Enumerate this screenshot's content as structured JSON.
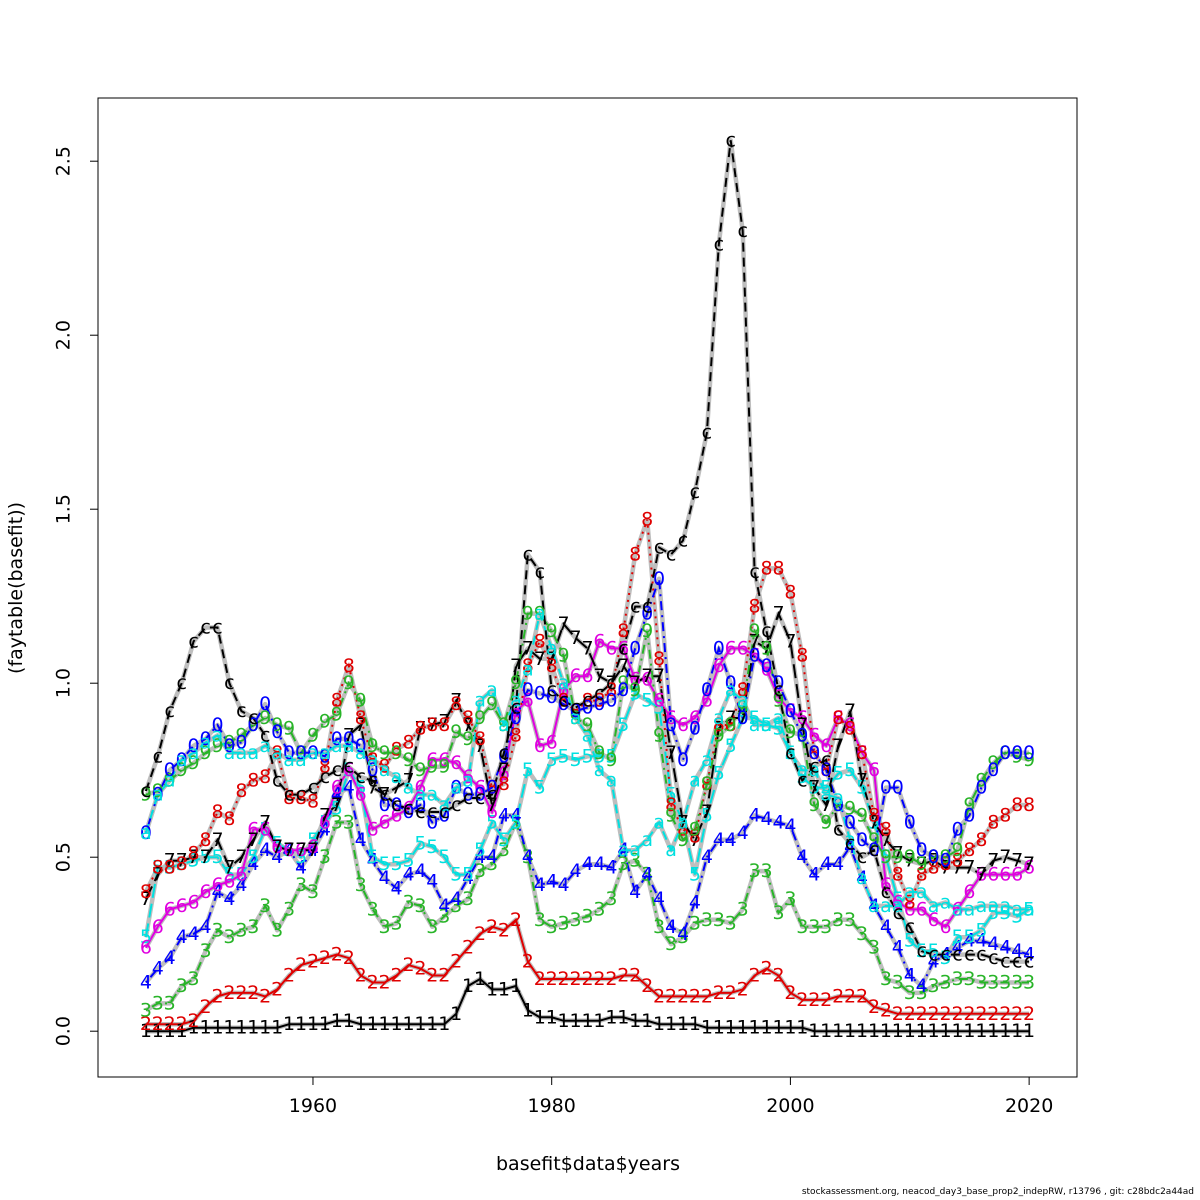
{
  "chart_data": {
    "type": "line",
    "xlabel": "basefit$data$years",
    "ylabel": "(faytable(basefit))",
    "xlim": [
      1944,
      2022
    ],
    "ylim": [
      -0.1,
      2.65
    ],
    "x_ticks": [
      1960,
      1980,
      2000,
      2020
    ],
    "y_ticks": [
      0.0,
      0.5,
      1.0,
      1.5,
      2.0,
      2.5
    ],
    "y_tick_labels": [
      "0.0",
      "0.5",
      "1.0",
      "1.5",
      "2.0",
      "2.5"
    ],
    "grid": false,
    "legend": "none",
    "x": [
      1946,
      1947,
      1948,
      1949,
      1950,
      1951,
      1952,
      1953,
      1954,
      1955,
      1956,
      1957,
      1958,
      1959,
      1960,
      1961,
      1962,
      1963,
      1964,
      1965,
      1966,
      1967,
      1968,
      1969,
      1970,
      1971,
      1972,
      1973,
      1974,
      1975,
      1976,
      1977,
      1978,
      1979,
      1980,
      1981,
      1982,
      1983,
      1984,
      1985,
      1986,
      1987,
      1988,
      1989,
      1990,
      1991,
      1992,
      1993,
      1994,
      1995,
      1996,
      1997,
      1998,
      1999,
      2000,
      2001,
      2002,
      2003,
      2004,
      2005,
      2006,
      2007,
      2008,
      2009,
      2010,
      2011,
      2012,
      2013,
      2014,
      2015,
      2016,
      2017,
      2018,
      2019,
      2020
    ],
    "series": [
      {
        "label": "1",
        "color": "#000000",
        "dash": "solid",
        "values": [
          0.0,
          0.0,
          0.0,
          0.0,
          0.01,
          0.01,
          0.01,
          0.01,
          0.01,
          0.01,
          0.01,
          0.01,
          0.02,
          0.02,
          0.02,
          0.02,
          0.03,
          0.03,
          0.02,
          0.02,
          0.02,
          0.02,
          0.02,
          0.02,
          0.02,
          0.02,
          0.05,
          0.13,
          0.15,
          0.12,
          0.12,
          0.13,
          0.06,
          0.04,
          0.04,
          0.03,
          0.03,
          0.03,
          0.03,
          0.04,
          0.04,
          0.03,
          0.03,
          0.02,
          0.02,
          0.02,
          0.02,
          0.01,
          0.01,
          0.01,
          0.01,
          0.01,
          0.01,
          0.01,
          0.01,
          0.01,
          0.0,
          0.0,
          0.0,
          0.0,
          0.0,
          0.0,
          0.0,
          0.0,
          0.0,
          0.0,
          0.0,
          0.0,
          0.0,
          0.0,
          0.0,
          0.0,
          0.0,
          0.0,
          0.0
        ]
      },
      {
        "label": "2",
        "color": "#df0000",
        "dash": "solid",
        "values": [
          0.02,
          0.02,
          0.02,
          0.02,
          0.03,
          0.07,
          0.1,
          0.11,
          0.11,
          0.11,
          0.1,
          0.12,
          0.16,
          0.19,
          0.2,
          0.21,
          0.22,
          0.21,
          0.16,
          0.14,
          0.14,
          0.16,
          0.19,
          0.18,
          0.16,
          0.16,
          0.2,
          0.24,
          0.28,
          0.3,
          0.29,
          0.32,
          0.2,
          0.15,
          0.15,
          0.15,
          0.15,
          0.15,
          0.15,
          0.15,
          0.16,
          0.16,
          0.13,
          0.1,
          0.1,
          0.1,
          0.1,
          0.1,
          0.11,
          0.11,
          0.12,
          0.16,
          0.18,
          0.16,
          0.11,
          0.09,
          0.09,
          0.09,
          0.1,
          0.1,
          0.1,
          0.07,
          0.06,
          0.05,
          0.05,
          0.05,
          0.05,
          0.05,
          0.05,
          0.05,
          0.05,
          0.05,
          0.05,
          0.05,
          0.05
        ]
      },
      {
        "label": "3",
        "color": "#28b428",
        "dash": "dotdash",
        "values": [
          0.06,
          0.08,
          0.08,
          0.13,
          0.15,
          0.23,
          0.29,
          0.27,
          0.29,
          0.3,
          0.36,
          0.29,
          0.35,
          0.42,
          0.4,
          0.5,
          0.6,
          0.6,
          0.42,
          0.35,
          0.3,
          0.31,
          0.37,
          0.36,
          0.3,
          0.33,
          0.36,
          0.38,
          0.46,
          0.48,
          0.52,
          0.6,
          0.5,
          0.32,
          0.3,
          0.31,
          0.32,
          0.33,
          0.35,
          0.38,
          0.48,
          0.49,
          0.45,
          0.3,
          0.25,
          0.27,
          0.31,
          0.32,
          0.32,
          0.31,
          0.35,
          0.46,
          0.46,
          0.34,
          0.38,
          0.3,
          0.3,
          0.3,
          0.32,
          0.32,
          0.28,
          0.24,
          0.15,
          0.14,
          0.11,
          0.11,
          0.13,
          0.14,
          0.15,
          0.15,
          0.14,
          0.14,
          0.14,
          0.14,
          0.14
        ]
      },
      {
        "label": "4",
        "color": "#0000ff",
        "dash": "dotdash",
        "values": [
          0.14,
          0.18,
          0.21,
          0.27,
          0.28,
          0.3,
          0.4,
          0.38,
          0.42,
          0.48,
          0.52,
          0.5,
          0.52,
          0.47,
          0.52,
          0.58,
          0.68,
          0.7,
          0.55,
          0.49,
          0.44,
          0.41,
          0.45,
          0.46,
          0.43,
          0.36,
          0.38,
          0.44,
          0.5,
          0.5,
          0.62,
          0.62,
          0.5,
          0.42,
          0.43,
          0.42,
          0.46,
          0.48,
          0.48,
          0.47,
          0.52,
          0.4,
          0.45,
          0.38,
          0.3,
          0.28,
          0.37,
          0.5,
          0.55,
          0.55,
          0.57,
          0.62,
          0.61,
          0.6,
          0.59,
          0.5,
          0.45,
          0.48,
          0.48,
          0.53,
          0.44,
          0.36,
          0.3,
          0.24,
          0.16,
          0.13,
          0.2,
          0.22,
          0.24,
          0.26,
          0.26,
          0.25,
          0.24,
          0.23,
          0.22
        ]
      },
      {
        "label": "5",
        "color": "#00e0e0",
        "dash": "longdash",
        "values": [
          0.27,
          0.47,
          0.47,
          0.48,
          0.49,
          0.5,
          0.5,
          0.45,
          0.45,
          0.5,
          0.58,
          0.54,
          0.52,
          0.5,
          0.55,
          0.6,
          0.64,
          0.75,
          0.7,
          0.5,
          0.48,
          0.48,
          0.49,
          0.54,
          0.53,
          0.5,
          0.45,
          0.45,
          0.52,
          0.6,
          0.55,
          0.6,
          0.75,
          0.7,
          0.78,
          0.79,
          0.78,
          0.79,
          0.79,
          0.79,
          0.88,
          0.97,
          0.95,
          0.93,
          0.68,
          0.6,
          0.45,
          0.62,
          0.74,
          0.82,
          0.9,
          0.9,
          0.88,
          0.87,
          0.8,
          0.73,
          0.7,
          0.7,
          0.74,
          0.75,
          0.7,
          0.6,
          0.5,
          0.38,
          0.26,
          0.23,
          0.23,
          0.21,
          0.27,
          0.27,
          0.29,
          0.34,
          0.34,
          0.33,
          0.35
        ]
      },
      {
        "label": "6",
        "color": "#e000e0",
        "dash": "solid",
        "values": [
          0.24,
          0.3,
          0.35,
          0.36,
          0.37,
          0.4,
          0.42,
          0.43,
          0.45,
          0.58,
          0.58,
          0.53,
          0.52,
          0.52,
          0.53,
          0.6,
          0.7,
          0.75,
          0.68,
          0.58,
          0.6,
          0.62,
          0.64,
          0.7,
          0.78,
          0.78,
          0.77,
          0.73,
          0.7,
          0.63,
          0.74,
          0.92,
          0.95,
          0.82,
          0.83,
          0.98,
          1.02,
          1.02,
          1.12,
          1.1,
          1.1,
          1.01,
          1.01,
          0.95,
          0.9,
          0.88,
          0.9,
          0.95,
          1.05,
          1.1,
          1.1,
          1.08,
          1.04,
          0.96,
          0.92,
          0.9,
          0.85,
          0.82,
          0.9,
          0.88,
          0.8,
          0.75,
          0.42,
          0.37,
          0.35,
          0.35,
          0.32,
          0.3,
          0.35,
          0.4,
          0.45,
          0.45,
          0.45,
          0.45,
          0.47
        ]
      },
      {
        "label": "7",
        "color": "#000000",
        "dash": "longdash",
        "values": [
          0.38,
          0.45,
          0.49,
          0.49,
          0.5,
          0.5,
          0.55,
          0.47,
          0.5,
          0.55,
          0.6,
          0.53,
          0.52,
          0.52,
          0.52,
          0.62,
          0.65,
          0.85,
          0.88,
          0.7,
          0.68,
          0.7,
          0.72,
          0.87,
          0.88,
          0.89,
          0.95,
          0.88,
          0.82,
          0.65,
          0.75,
          1.05,
          1.1,
          1.07,
          1.07,
          1.17,
          1.13,
          1.1,
          1.02,
          1.0,
          1.05,
          1.0,
          1.02,
          1.02,
          0.8,
          0.6,
          0.55,
          0.63,
          0.87,
          0.9,
          0.9,
          1.12,
          1.1,
          1.2,
          1.12,
          0.88,
          0.7,
          0.65,
          0.82,
          0.92,
          0.72,
          0.6,
          0.55,
          0.51,
          0.49,
          0.48,
          0.49,
          0.47,
          0.47,
          0.47,
          0.45,
          0.49,
          0.5,
          0.49,
          0.48
        ]
      },
      {
        "label": "8",
        "color": "#df0000",
        "dash": "dotted",
        "values": [
          0.4,
          0.47,
          0.47,
          0.48,
          0.51,
          0.55,
          0.63,
          0.61,
          0.69,
          0.72,
          0.73,
          0.8,
          0.67,
          0.67,
          0.66,
          0.76,
          0.95,
          1.05,
          0.9,
          0.78,
          0.76,
          0.81,
          0.83,
          0.87,
          0.88,
          0.88,
          0.94,
          0.9,
          0.84,
          0.7,
          0.71,
          0.85,
          1.05,
          1.12,
          1.05,
          0.95,
          0.92,
          0.95,
          0.95,
          0.98,
          1.15,
          1.37,
          1.47,
          1.07,
          0.65,
          0.58,
          0.56,
          0.71,
          0.88,
          0.88,
          0.98,
          1.22,
          1.33,
          1.33,
          1.26,
          1.08,
          0.8,
          0.75,
          0.9,
          0.87,
          0.8,
          0.62,
          0.58,
          0.45,
          0.37,
          0.45,
          0.47,
          0.48,
          0.49,
          0.52,
          0.55,
          0.6,
          0.62,
          0.65,
          0.65
        ]
      },
      {
        "label": "9",
        "color": "#28b428",
        "dash": "dotdash",
        "values": [
          0.68,
          0.69,
          0.72,
          0.75,
          0.77,
          0.8,
          0.82,
          0.83,
          0.85,
          0.88,
          0.9,
          0.88,
          0.87,
          0.8,
          0.85,
          0.89,
          0.91,
          1.0,
          0.95,
          0.82,
          0.8,
          0.8,
          0.78,
          0.75,
          0.76,
          0.76,
          0.86,
          0.84,
          0.9,
          0.94,
          0.88,
          1.0,
          1.2,
          1.2,
          1.15,
          1.08,
          0.9,
          0.88,
          0.8,
          0.78,
          1.0,
          0.98,
          1.15,
          0.85,
          0.62,
          0.55,
          0.58,
          0.71,
          0.85,
          0.88,
          0.93,
          1.15,
          1.1,
          0.95,
          0.86,
          0.85,
          0.65,
          0.6,
          0.65,
          0.64,
          0.62,
          0.55,
          0.5,
          0.5,
          0.5,
          0.48,
          0.5,
          0.5,
          0.52,
          0.65,
          0.72,
          0.77,
          0.8,
          0.79,
          0.78
        ]
      },
      {
        "label": "0",
        "color": "#0000ff",
        "dash": "dotdash",
        "values": [
          0.57,
          0.68,
          0.75,
          0.78,
          0.82,
          0.84,
          0.88,
          0.82,
          0.83,
          0.88,
          0.94,
          0.86,
          0.8,
          0.8,
          0.8,
          0.79,
          0.84,
          0.84,
          0.82,
          0.75,
          0.65,
          0.65,
          0.63,
          0.65,
          0.6,
          0.62,
          0.7,
          0.68,
          0.68,
          0.7,
          0.79,
          0.9,
          0.98,
          0.97,
          0.96,
          0.94,
          0.92,
          0.93,
          0.94,
          0.95,
          0.98,
          1.1,
          1.2,
          1.3,
          0.88,
          0.78,
          0.87,
          0.98,
          1.1,
          1.0,
          0.9,
          1.08,
          1.05,
          1.0,
          0.92,
          0.85,
          0.8,
          0.75,
          0.65,
          0.6,
          0.55,
          0.52,
          0.7,
          0.7,
          0.6,
          0.52,
          0.5,
          0.49,
          0.58,
          0.62,
          0.7,
          0.75,
          0.8,
          0.8,
          0.8
        ]
      },
      {
        "label": "a",
        "color": "#00e0e0",
        "dash": "dashed",
        "values": [
          0.57,
          0.68,
          0.72,
          0.78,
          0.8,
          0.83,
          0.85,
          0.8,
          0.8,
          0.8,
          0.82,
          0.8,
          0.78,
          0.78,
          0.8,
          0.8,
          0.82,
          0.82,
          0.8,
          0.78,
          0.75,
          0.73,
          0.7,
          0.68,
          0.68,
          0.65,
          0.7,
          0.72,
          0.95,
          0.98,
          0.88,
          0.95,
          1.04,
          1.2,
          1.1,
          1.0,
          0.9,
          0.85,
          0.75,
          0.72,
          0.52,
          0.52,
          0.55,
          0.6,
          0.52,
          0.6,
          0.72,
          0.78,
          0.9,
          0.98,
          0.95,
          0.88,
          0.88,
          0.9,
          0.8,
          0.75,
          0.75,
          0.68,
          0.67,
          0.55,
          0.44,
          0.36,
          0.36,
          0.36,
          0.4,
          0.4,
          0.36,
          0.37,
          0.35,
          0.35,
          0.36,
          0.36,
          0.36,
          0.35,
          0.35
        ]
      },
      {
        "label": "c",
        "color": "#000000",
        "dash": "dashed",
        "values": [
          0.69,
          0.79,
          0.92,
          1.0,
          1.12,
          1.16,
          1.16,
          1.0,
          0.92,
          0.9,
          0.85,
          0.72,
          0.68,
          0.68,
          0.7,
          0.73,
          0.75,
          0.76,
          0.73,
          0.72,
          0.68,
          0.65,
          0.64,
          0.63,
          0.63,
          0.63,
          0.65,
          0.67,
          0.67,
          0.68,
          0.8,
          0.93,
          1.37,
          1.32,
          0.98,
          0.95,
          0.93,
          0.95,
          0.97,
          1.0,
          1.1,
          1.22,
          1.22,
          1.39,
          1.37,
          1.41,
          1.55,
          1.72,
          2.26,
          2.56,
          2.3,
          1.32,
          1.15,
          0.98,
          0.8,
          0.72,
          0.76,
          0.78,
          0.58,
          0.54,
          0.5,
          0.52,
          0.4,
          0.34,
          0.3,
          0.23,
          0.22,
          0.22,
          0.22,
          0.22,
          0.22,
          0.21,
          0.2,
          0.2,
          0.2
        ]
      }
    ],
    "background_series_color": "#bebebe"
  },
  "footer": "stockassessment.org, neacod_day3_base_prop2_indepRW, r13796 , git: c28bdc2a44ad"
}
